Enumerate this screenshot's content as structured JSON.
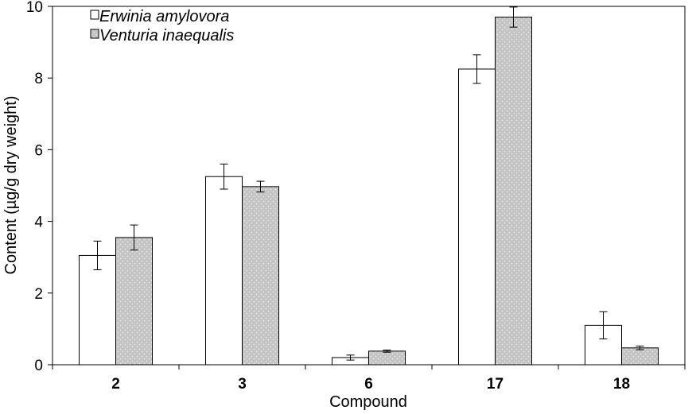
{
  "chart_data": {
    "type": "bar",
    "categories": [
      "2",
      "3",
      "6",
      "17",
      "18"
    ],
    "series": [
      {
        "name": "Erwinia amylovora",
        "values": [
          3.05,
          5.25,
          0.2,
          8.25,
          1.1
        ],
        "errors": [
          0.4,
          0.35,
          0.07,
          0.4,
          0.38
        ],
        "color": "#ffffff"
      },
      {
        "name": "Venturia inaequalis",
        "values": [
          3.55,
          4.97,
          0.38,
          9.7,
          0.47
        ],
        "errors": [
          0.35,
          0.15,
          0.03,
          0.28,
          0.05
        ],
        "color": "#c9c9c9"
      }
    ],
    "xlabel": "Compound",
    "ylabel": "Content (µg/g dry weight)",
    "ylim": [
      0,
      10
    ],
    "yticks": [
      0,
      2,
      4,
      6,
      8,
      10
    ],
    "grid": false,
    "legend_position": "top-left"
  }
}
